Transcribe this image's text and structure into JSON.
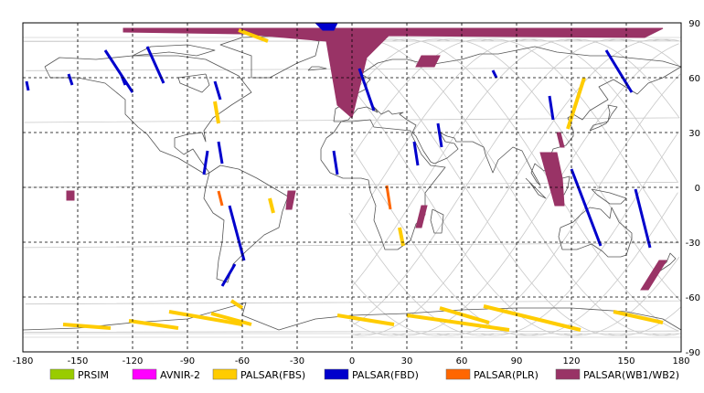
{
  "map": {
    "x_ticks": [
      "-180",
      "-150",
      "-120",
      "-90",
      "-60",
      "-30",
      "0",
      "30",
      "60",
      "90",
      "120",
      "150",
      "180"
    ],
    "y_ticks": [
      "90",
      "60",
      "30",
      "0",
      "-30",
      "-60",
      "-90"
    ],
    "lon_range": [
      -180,
      180
    ],
    "lat_range": [
      -90,
      90
    ],
    "grid": "dashed every 30 degrees"
  },
  "legend": {
    "items": [
      {
        "label": "PRSIM",
        "color": "#99cc00"
      },
      {
        "label": "AVNIR-2",
        "color": "#ff00ff"
      },
      {
        "label": "PALSAR(FBS)",
        "color": "#ffcc00"
      },
      {
        "label": "PALSAR(FBD)",
        "color": "#0000cc"
      },
      {
        "label": "PALSAR(PLR)",
        "color": "#ff6600"
      },
      {
        "label": "PALSAR(WB1/WB2)",
        "color": "#993366"
      }
    ]
  },
  "chart_data": {
    "type": "map",
    "xlim": [
      -180,
      180
    ],
    "ylim": [
      -90,
      90
    ],
    "colors": {
      "PALSAR(FBS)": "#ffcc00",
      "PALSAR(FBD)": "#0000cc",
      "PALSAR(PLR)": "#ff6600",
      "PALSAR(WB1/WB2)": "#993366"
    },
    "strips": [
      {
        "mode": "PALSAR(FBD)",
        "from": [
          -135,
          75
        ],
        "to": [
          -120,
          52
        ]
      },
      {
        "mode": "PALSAR(FBD)",
        "from": [
          -112,
          77
        ],
        "to": [
          -103,
          57
        ]
      },
      {
        "mode": "PALSAR(FBD)",
        "from": [
          -178,
          58
        ],
        "to": [
          -177,
          53
        ]
      },
      {
        "mode": "PALSAR(FBD)",
        "from": [
          -155,
          62
        ],
        "to": [
          -153,
          56
        ]
      },
      {
        "mode": "PALSAR(FBD)",
        "from": [
          -126,
          61
        ],
        "to": [
          -124,
          56
        ]
      },
      {
        "mode": "PALSAR(FBD)",
        "from": [
          -75,
          58
        ],
        "to": [
          -72,
          48
        ]
      },
      {
        "mode": "PALSAR(FBD)",
        "from": [
          -73,
          25
        ],
        "to": [
          -71,
          13
        ]
      },
      {
        "mode": "PALSAR(FBD)",
        "from": [
          -79,
          20
        ],
        "to": [
          -81,
          7
        ]
      },
      {
        "mode": "PALSAR(FBD)",
        "from": [
          -67,
          -10
        ],
        "to": [
          -59,
          -40
        ]
      },
      {
        "mode": "PALSAR(FBD)",
        "from": [
          -64,
          -42
        ],
        "to": [
          -71,
          -54
        ]
      },
      {
        "mode": "PALSAR(FBD)",
        "from": [
          -10,
          20
        ],
        "to": [
          -8,
          7
        ]
      },
      {
        "mode": "PALSAR(FBD)",
        "from": [
          4,
          65
        ],
        "to": [
          12,
          42
        ]
      },
      {
        "mode": "PALSAR(FBD)",
        "from": [
          34,
          25
        ],
        "to": [
          36,
          12
        ]
      },
      {
        "mode": "PALSAR(FBD)",
        "from": [
          47,
          35
        ],
        "to": [
          49,
          22
        ]
      },
      {
        "mode": "PALSAR(FBD)",
        "from": [
          77,
          64
        ],
        "to": [
          79,
          60
        ]
      },
      {
        "mode": "PALSAR(FBD)",
        "from": [
          108,
          50
        ],
        "to": [
          110,
          37
        ]
      },
      {
        "mode": "PALSAR(FBD)",
        "from": [
          120,
          10
        ],
        "to": [
          136,
          -32
        ]
      },
      {
        "mode": "PALSAR(FBD)",
        "from": [
          139,
          75
        ],
        "to": [
          153,
          52
        ]
      },
      {
        "mode": "PALSAR(FBD)",
        "from": [
          155,
          -1
        ],
        "to": [
          163,
          -33
        ]
      },
      {
        "mode": "PALSAR(FBS)",
        "from": [
          -62,
          86
        ],
        "to": [
          -46,
          80
        ]
      },
      {
        "mode": "PALSAR(FBS)",
        "from": [
          -75,
          47
        ],
        "to": [
          -73,
          35
        ]
      },
      {
        "mode": "PALSAR(FBS)",
        "from": [
          -45,
          -6
        ],
        "to": [
          -43,
          -14
        ]
      },
      {
        "mode": "PALSAR(FBS)",
        "from": [
          26,
          -22
        ],
        "to": [
          28,
          -32
        ]
      },
      {
        "mode": "PALSAR(FBS)",
        "from": [
          127,
          60
        ],
        "to": [
          118,
          32
        ]
      },
      {
        "mode": "PALSAR(FBS)",
        "from": [
          -158,
          -75
        ],
        "to": [
          -132,
          -77
        ]
      },
      {
        "mode": "PALSAR(FBS)",
        "from": [
          -122,
          -73
        ],
        "to": [
          -95,
          -77
        ]
      },
      {
        "mode": "PALSAR(FBS)",
        "from": [
          -100,
          -68
        ],
        "to": [
          -60,
          -75
        ]
      },
      {
        "mode": "PALSAR(FBS)",
        "from": [
          -77,
          -69
        ],
        "to": [
          -55,
          -75
        ]
      },
      {
        "mode": "PALSAR(FBS)",
        "from": [
          -66,
          -62
        ],
        "to": [
          -60,
          -66
        ]
      },
      {
        "mode": "PALSAR(FBS)",
        "from": [
          -8,
          -70
        ],
        "to": [
          23,
          -75
        ]
      },
      {
        "mode": "PALSAR(FBS)",
        "from": [
          30,
          -70
        ],
        "to": [
          86,
          -78
        ]
      },
      {
        "mode": "PALSAR(FBS)",
        "from": [
          48,
          -66
        ],
        "to": [
          75,
          -74
        ]
      },
      {
        "mode": "PALSAR(FBS)",
        "from": [
          72,
          -65
        ],
        "to": [
          125,
          -78
        ]
      },
      {
        "mode": "PALSAR(FBS)",
        "from": [
          143,
          -68
        ],
        "to": [
          170,
          -74
        ]
      },
      {
        "mode": "PALSAR(PLR)",
        "from": [
          -73,
          -2
        ],
        "to": [
          -71,
          -10
        ]
      },
      {
        "mode": "PALSAR(PLR)",
        "from": [
          19,
          1
        ],
        "to": [
          21,
          -12
        ]
      }
    ],
    "wide_swaths": [
      {
        "mode": "PALSAR(WB1/WB2)",
        "bounds": [
          [
            -125,
            87
          ],
          [
            170,
            87
          ],
          [
            160,
            82
          ],
          [
            20,
            83
          ],
          [
            8,
            71
          ],
          [
            0,
            38
          ],
          [
            -8,
            45
          ],
          [
            -14,
            80
          ],
          [
            -60,
            84
          ],
          [
            -125,
            85
          ]
        ]
      },
      {
        "mode": "PALSAR(FBD)",
        "bounds": [
          [
            -20,
            90
          ],
          [
            -8,
            90
          ],
          [
            -10,
            86
          ],
          [
            -16,
            86
          ]
        ]
      },
      {
        "mode": "PALSAR(WB1/WB2)",
        "bounds": [
          [
            103,
            19
          ],
          [
            112,
            19
          ],
          [
            115,
            5
          ],
          [
            116,
            -10
          ],
          [
            111,
            -10
          ]
        ]
      },
      {
        "mode": "PALSAR(WB1/WB2)",
        "bounds": [
          [
            112,
            30
          ],
          [
            114,
            30
          ],
          [
            116,
            22
          ],
          [
            114,
            22
          ]
        ]
      },
      {
        "mode": "PALSAR(WB1/WB2)",
        "bounds": [
          [
            168,
            -40
          ],
          [
            172,
            -40
          ],
          [
            162,
            -56
          ],
          [
            158,
            -56
          ]
        ]
      },
      {
        "mode": "PALSAR(WB1/WB2)",
        "bounds": [
          [
            38,
            72
          ],
          [
            48,
            72
          ],
          [
            45,
            66
          ],
          [
            35,
            66
          ]
        ]
      },
      {
        "mode": "PALSAR(WB1/WB2)",
        "bounds": [
          [
            -156,
            -2
          ],
          [
            -152,
            -2
          ],
          [
            -152,
            -7
          ],
          [
            -156,
            -7
          ]
        ]
      },
      {
        "mode": "PALSAR(WB1/WB2)",
        "bounds": [
          [
            -35,
            -2
          ],
          [
            -31,
            -2
          ],
          [
            -33,
            -12
          ],
          [
            -36,
            -12
          ]
        ]
      },
      {
        "mode": "PALSAR(WB1/WB2)",
        "bounds": [
          [
            38,
            -10
          ],
          [
            41,
            -10
          ],
          [
            38,
            -22
          ],
          [
            35,
            -22
          ]
        ]
      }
    ]
  }
}
